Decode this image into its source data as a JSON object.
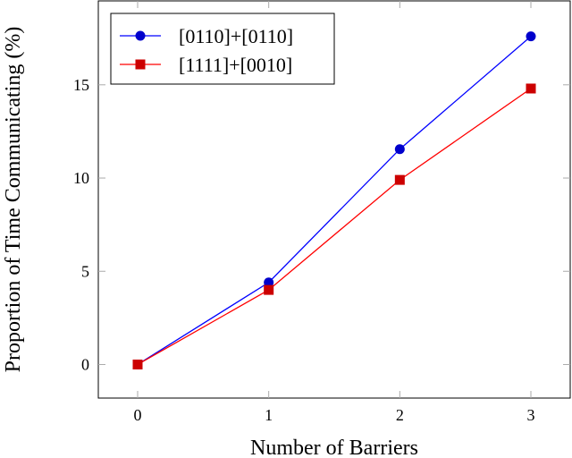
{
  "chart_data": {
    "type": "line",
    "xlabel": "Number of Barriers",
    "ylabel": "Proportion of Time Communicating (%)",
    "x": [
      0,
      1,
      2,
      3
    ],
    "xticks": [
      "0",
      "1",
      "2",
      "3"
    ],
    "yticks": [
      "0",
      "5",
      "10",
      "15"
    ],
    "xlim": [
      -0.3,
      3.3
    ],
    "ylim": [
      -1.8,
      19.5
    ],
    "grid": false,
    "legend_position": "top-left",
    "series": [
      {
        "name": "[0110]+[0110]",
        "values": [
          0,
          4.4,
          11.55,
          17.6
        ],
        "color": "#0000ff",
        "marker_color": "#0000cc",
        "marker": "circle"
      },
      {
        "name": "[1111]+[0010]",
        "values": [
          0,
          4.0,
          9.9,
          14.8
        ],
        "color": "#ff0000",
        "marker_color": "#cc0000",
        "marker": "square"
      }
    ]
  }
}
